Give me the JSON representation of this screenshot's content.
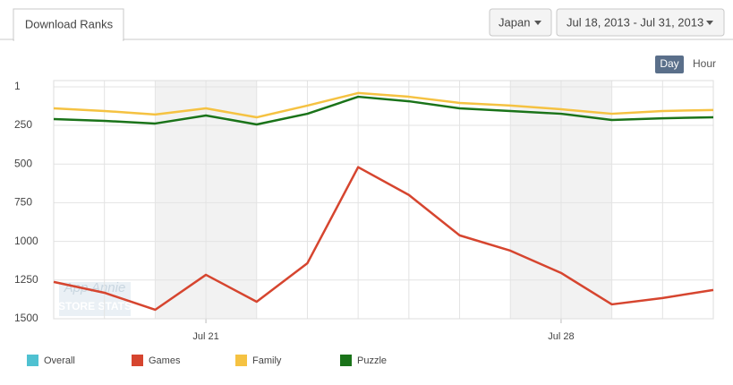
{
  "header": {
    "tab": "Download Ranks",
    "country": "Japan",
    "date_range": "Jul 18, 2013 - Jul 31, 2013",
    "granularity": [
      "Day",
      "Hour"
    ]
  },
  "watermark": {
    "line1": "App Annie",
    "line2": "STORE STATS"
  },
  "chart_data": {
    "type": "line",
    "categories": [
      null,
      null,
      null,
      "Jul 21",
      null,
      null,
      null,
      null,
      null,
      null,
      "Jul 28",
      null,
      null,
      null
    ],
    "series": [
      {
        "name": "Overall",
        "color": "#4fc1d1",
        "values": [
          null,
          null,
          null,
          null,
          null,
          null,
          null,
          null,
          null,
          null,
          null,
          null,
          null,
          null
        ]
      },
      {
        "name": "Games",
        "color": "#d6452f",
        "values": [
          1262,
          1332,
          1442,
          1216,
          1390,
          1141,
          520,
          700,
          961,
          1060,
          1204,
          1407,
          1366,
          1314
        ]
      },
      {
        "name": "Family",
        "color": "#f5c242",
        "values": [
          140,
          157,
          180,
          140,
          198,
          122,
          41,
          65,
          105,
          122,
          146,
          175,
          157,
          151
        ]
      },
      {
        "name": "Puzzle",
        "color": "#1a7319",
        "values": [
          209,
          221,
          238,
          186,
          244,
          175,
          65,
          94,
          140,
          157,
          175,
          215,
          204,
          198
        ]
      }
    ],
    "ylim": [
      1,
      1500
    ],
    "y_inverted": true,
    "yticks": [
      1,
      250,
      500,
      750,
      1000,
      1250,
      1500
    ],
    "grid": true
  }
}
